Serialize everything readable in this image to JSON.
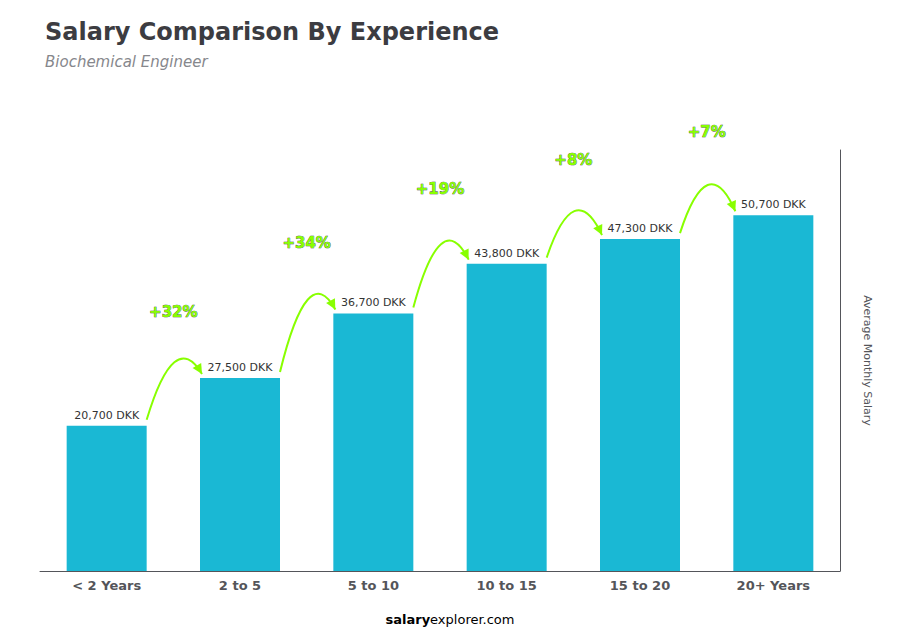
{
  "chart_data": {
    "type": "bar",
    "title": "Salary Comparison By Experience",
    "subtitle": "Biochemical Engineer",
    "categories": [
      "< 2 Years",
      "2 to 5",
      "5 to 10",
      "10 to 15",
      "15 to 20",
      "20+ Years"
    ],
    "values": [
      20700,
      27500,
      36700,
      43800,
      47300,
      50700
    ],
    "value_labels": [
      "20,700 DKK",
      "27,500 DKK",
      "36,700 DKK",
      "43,800 DKK",
      "47,300 DKK",
      "50,700 DKK"
    ],
    "data_labels": true,
    "color": "#1ab8d4",
    "ylabel": "Average Monthly Salary",
    "ylim": [
      0,
      60000
    ],
    "grid": false,
    "tick_labels": "x",
    "annotations": [
      {
        "text": "+32%",
        "color": "#88ff00"
      },
      {
        "text": "+34%",
        "color": "#88ff00"
      },
      {
        "text": "+19%",
        "color": "#88ff00"
      },
      {
        "text": "+8%",
        "color": "#88ff00"
      },
      {
        "text": "+7%",
        "color": "#88ff00"
      }
    ],
    "footer": [
      "salary",
      "explorer.com"
    ]
  }
}
